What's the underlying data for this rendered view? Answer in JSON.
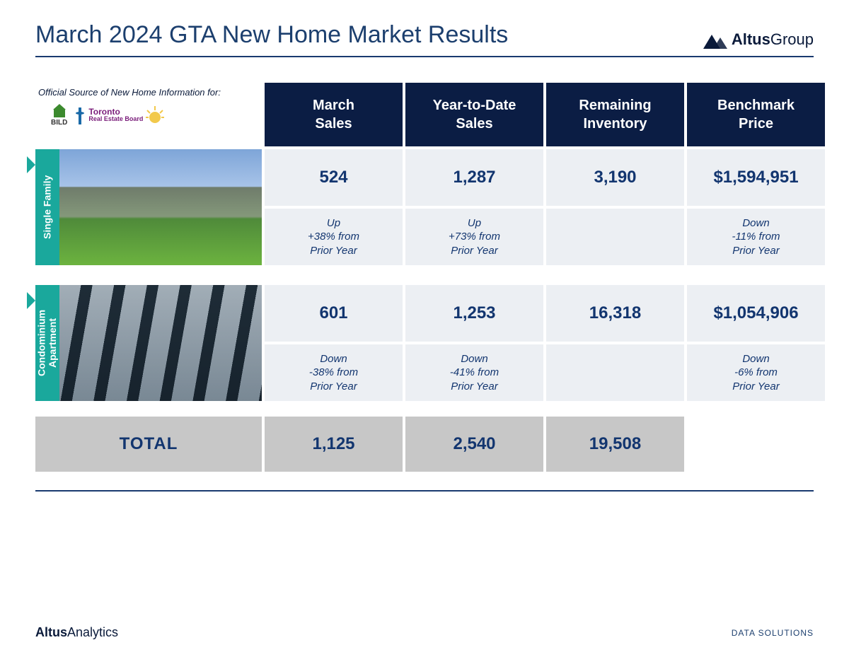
{
  "colors": {
    "header_bg": "#0b1d44",
    "header_text": "#ffffff",
    "value_bg": "#eceff3",
    "value_text": "#12356f",
    "total_bg": "#c7c7c7",
    "tab_bg": "#1aa89c",
    "rule": "#193a6f",
    "title": "#1c3f6e"
  },
  "title": "March 2024 GTA New Home Market Results",
  "brand": {
    "main": "Altus",
    "sub": "Group"
  },
  "source_tag": "Official Source of New Home Information for:",
  "source_logos": {
    "bild": "BILD",
    "treb_line1": "Toronto",
    "treb_line2": "Real Estate Board"
  },
  "columns": [
    "March\nSales",
    "Year-to-Date\nSales",
    "Remaining\nInventory",
    "Benchmark\nPrice"
  ],
  "rows": [
    {
      "label": "Single Family",
      "img_class": "sf",
      "values": [
        "524",
        "1,287",
        "3,190",
        "$1,594,951"
      ],
      "deltas": [
        "Up\n+38%  from\nPrior Year",
        "Up\n+73%  from\nPrior Year",
        "",
        "Down\n-11% from\nPrior Year"
      ]
    },
    {
      "label": "Condominium\nApartment",
      "img_class": "condo",
      "values": [
        "601",
        "1,253",
        "16,318",
        "$1,054,906"
      ],
      "deltas": [
        "Down\n-38%  from\nPrior Year",
        "Down\n-41%  from\nPrior Year",
        "",
        "Down\n-6% from\nPrior Year"
      ]
    }
  ],
  "total": {
    "label": "TOTAL",
    "values": [
      "1,125",
      "2,540",
      "19,508",
      ""
    ]
  },
  "footer": {
    "left_bold": "Altus",
    "left_light": "Analytics",
    "right": "DATA SOLUTIONS"
  }
}
